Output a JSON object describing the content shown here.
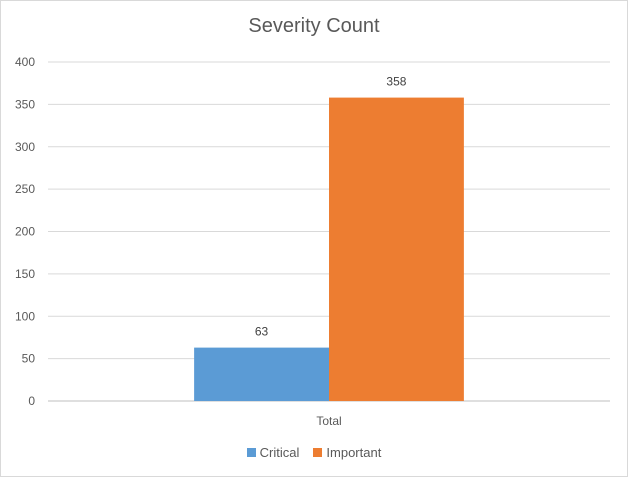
{
  "chart_data": {
    "type": "bar",
    "title": "Severity Count",
    "categories": [
      "Total"
    ],
    "series": [
      {
        "name": "Critical",
        "values": [
          63
        ],
        "color": "#5b9bd5"
      },
      {
        "name": "Important",
        "values": [
          358
        ],
        "color": "#ed7d31"
      }
    ],
    "ylim": [
      0,
      400
    ],
    "yticks": [
      0,
      50,
      100,
      150,
      200,
      250,
      300,
      350,
      400
    ],
    "grid": true,
    "legend_position": "bottom",
    "data_labels": true,
    "xlabel": "",
    "ylabel": ""
  }
}
